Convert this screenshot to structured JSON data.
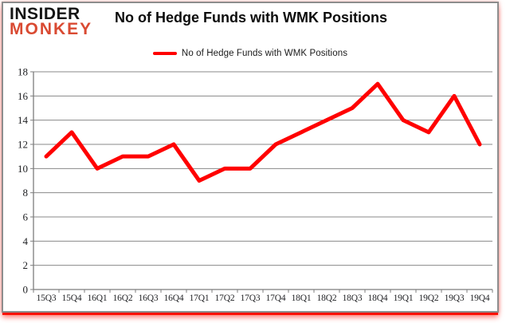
{
  "logo": {
    "line1": "INSIDER",
    "line2": "MONKEY",
    "line1_color": "#141414",
    "line2_color": "#d94a32"
  },
  "chart_data": {
    "type": "line",
    "title": "No of Hedge Funds with WMK Positions",
    "xlabel": "",
    "ylabel": "",
    "categories": [
      "15Q3",
      "15Q4",
      "16Q1",
      "16Q2",
      "16Q3",
      "16Q4",
      "17Q1",
      "17Q2",
      "17Q3",
      "17Q4",
      "18Q1",
      "18Q2",
      "18Q3",
      "18Q4",
      "19Q1",
      "19Q2",
      "19Q3",
      "19Q4"
    ],
    "series": [
      {
        "name": "No of Hedge Funds with WMK Positions",
        "color": "#ff0000",
        "values": [
          11,
          13,
          10,
          11,
          11,
          12,
          9,
          10,
          10,
          12,
          13,
          14,
          15,
          17,
          14,
          13,
          16,
          12
        ]
      }
    ],
    "ylim": [
      0,
      18
    ],
    "ytick_step": 2,
    "grid": true,
    "legend_position": "top-center",
    "styles": {
      "gridline_color": "#8a8a8a",
      "axis_color": "#7d7d7d",
      "tick_label_color": "#1f2023",
      "frame_border_color": "#8d8d8d",
      "glow_color": "#ff1100",
      "background": "#ffffff"
    }
  }
}
